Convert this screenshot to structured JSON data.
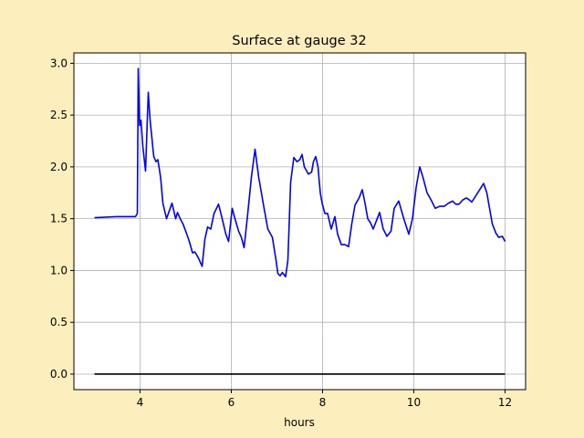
{
  "chart_data": {
    "type": "line",
    "title": "Surface at gauge 32",
    "xlabel": "hours",
    "background": "#fdeebd",
    "grid": true,
    "xlim": [
      2.55,
      12.45
    ],
    "ylim": [
      -0.15,
      3.1
    ],
    "xticks": [
      4,
      6,
      8,
      10,
      12
    ],
    "yticks": [
      {
        "value": 0,
        "label": "0.0"
      },
      0.5,
      {
        "value": 1,
        "label": "1.0"
      },
      1.5,
      {
        "value": 2,
        "label": "2.0"
      },
      2.5,
      {
        "value": 3,
        "label": "3.0"
      }
    ],
    "series": [
      {
        "color": "#0000ff",
        "x": [
          3.0,
          3.5,
          3.9,
          3.94,
          3.96,
          3.99,
          4.02,
          4.06,
          4.12,
          4.18,
          4.22,
          4.3,
          4.35,
          4.39,
          4.45,
          4.5,
          4.58,
          4.66,
          4.7,
          4.78,
          4.82,
          4.88,
          4.94,
          5.0,
          5.08,
          5.15,
          5.2,
          5.28,
          5.36,
          5.42,
          5.48,
          5.55,
          5.62,
          5.72,
          5.8,
          5.88,
          5.94,
          6.02,
          6.08,
          6.16,
          6.22,
          6.28,
          6.36,
          6.44,
          6.52,
          6.6,
          6.71,
          6.8,
          6.9,
          6.98,
          7.02,
          7.07,
          7.12,
          7.19,
          7.24,
          7.3,
          7.37,
          7.44,
          7.5,
          7.55,
          7.6,
          7.69,
          7.76,
          7.8,
          7.85,
          7.9,
          7.95,
          7.99,
          8.05,
          8.11,
          8.19,
          8.27,
          8.33,
          8.41,
          8.49,
          8.57,
          8.64,
          8.71,
          8.8,
          8.87,
          8.93,
          8.99,
          9.05,
          9.11,
          9.18,
          9.25,
          9.33,
          9.41,
          9.5,
          9.57,
          9.67,
          9.78,
          9.89,
          9.97,
          10.05,
          10.13,
          10.2,
          10.29,
          10.38,
          10.47,
          10.57,
          10.67,
          10.76,
          10.85,
          10.92,
          10.99,
          11.07,
          11.15,
          11.22,
          11.27,
          11.4,
          11.53,
          11.6,
          11.72,
          11.8,
          11.86,
          11.94,
          12.0
        ],
        "values": [
          1.51,
          1.52,
          1.52,
          1.55,
          2.95,
          2.4,
          2.45,
          2.2,
          1.96,
          2.72,
          2.45,
          2.1,
          2.05,
          2.07,
          1.9,
          1.65,
          1.5,
          1.6,
          1.65,
          1.5,
          1.56,
          1.5,
          1.45,
          1.38,
          1.28,
          1.17,
          1.18,
          1.12,
          1.04,
          1.3,
          1.42,
          1.4,
          1.55,
          1.64,
          1.5,
          1.35,
          1.28,
          1.6,
          1.5,
          1.38,
          1.32,
          1.22,
          1.55,
          1.9,
          2.17,
          1.9,
          1.62,
          1.4,
          1.32,
          1.1,
          0.97,
          0.95,
          0.98,
          0.94,
          1.1,
          1.85,
          2.09,
          2.05,
          2.07,
          2.12,
          2.0,
          1.93,
          1.95,
          2.05,
          2.1,
          2.0,
          1.75,
          1.65,
          1.55,
          1.55,
          1.4,
          1.52,
          1.35,
          1.25,
          1.25,
          1.23,
          1.45,
          1.63,
          1.7,
          1.78,
          1.65,
          1.5,
          1.46,
          1.4,
          1.48,
          1.56,
          1.4,
          1.33,
          1.38,
          1.6,
          1.67,
          1.5,
          1.35,
          1.5,
          1.8,
          2.0,
          1.9,
          1.75,
          1.68,
          1.6,
          1.62,
          1.62,
          1.65,
          1.67,
          1.64,
          1.64,
          1.68,
          1.7,
          1.68,
          1.66,
          1.75,
          1.84,
          1.75,
          1.45,
          1.36,
          1.32,
          1.33,
          1.28
        ]
      },
      {
        "color": "#000000",
        "x": [
          3,
          12
        ],
        "values": [
          0,
          0
        ]
      }
    ]
  }
}
